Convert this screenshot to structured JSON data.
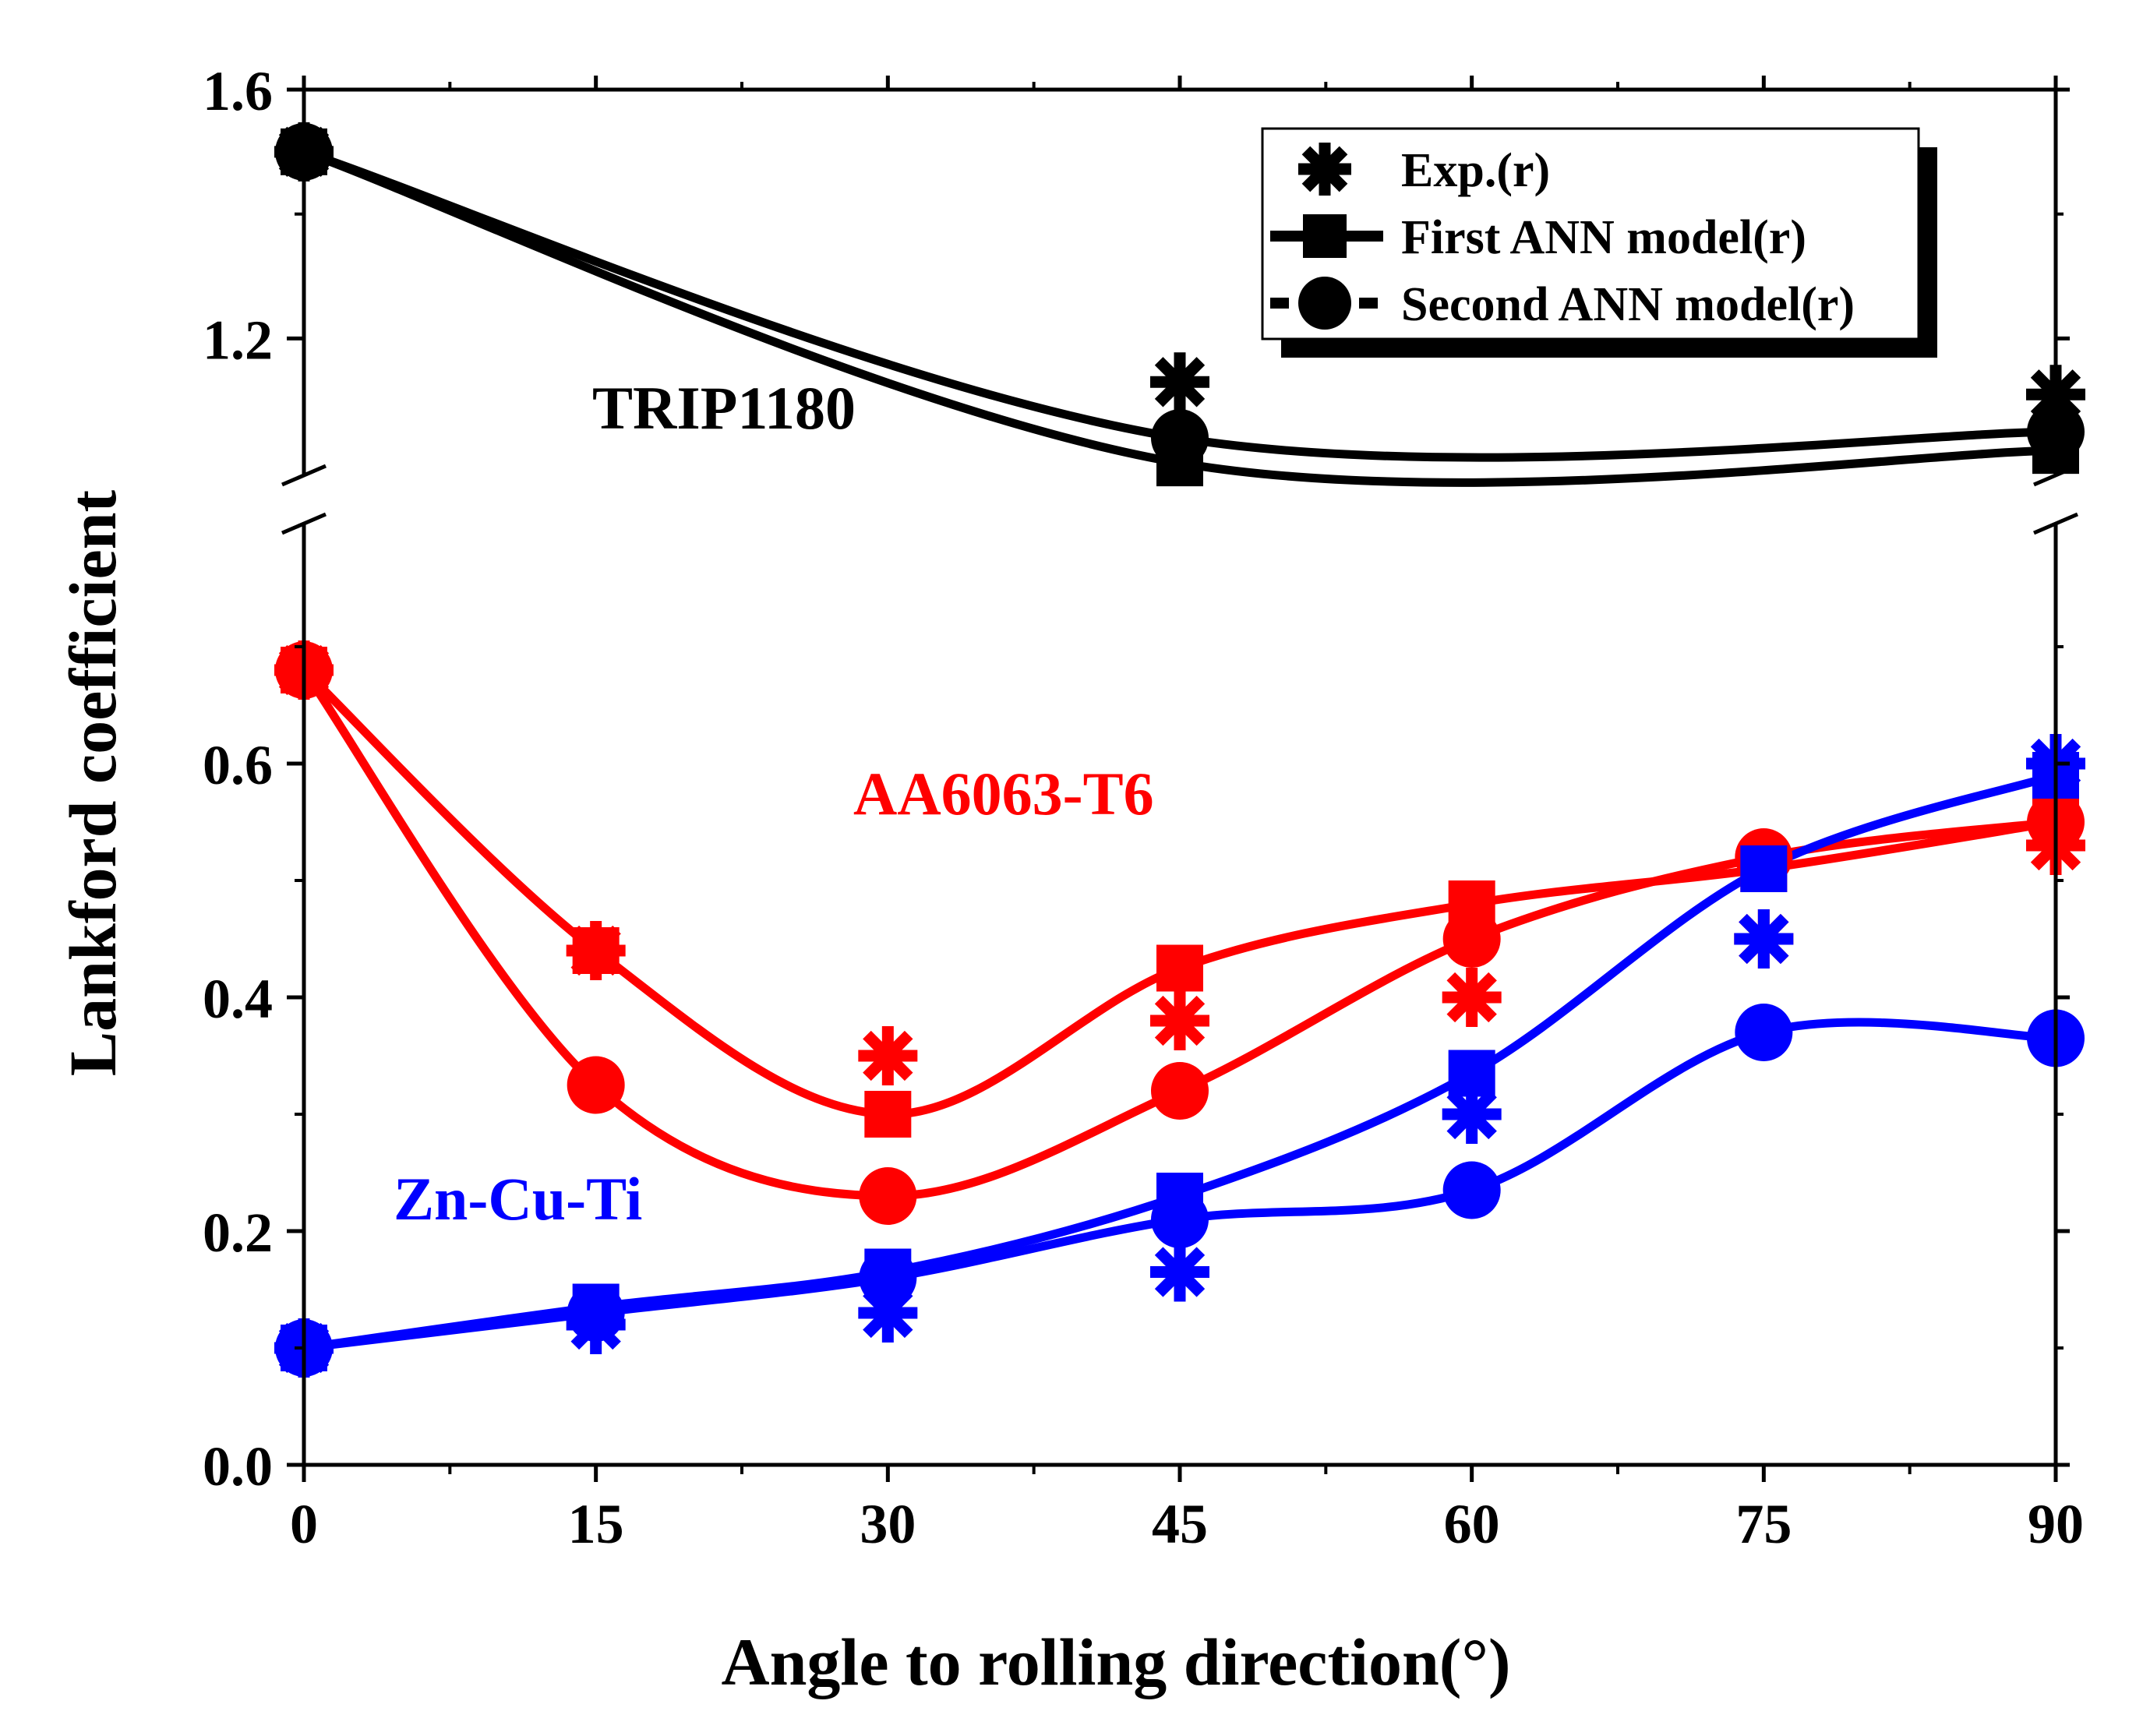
{
  "chart_data": {
    "type": "line",
    "xlabel": "Angle to rolling direction(°)",
    "ylabel": "Lankford coefficient",
    "x": [
      0,
      15,
      30,
      45,
      60,
      75,
      90
    ],
    "xlim": [
      0,
      90
    ],
    "xticks": [
      0,
      15,
      30,
      45,
      60,
      75,
      90
    ],
    "xtick_labels": [
      "0",
      "15",
      "30",
      "45",
      "60",
      "75",
      "90"
    ],
    "ylim_lower": [
      0.0,
      0.82
    ],
    "ylim_upper": [
      0.93,
      1.6
    ],
    "yticks": [
      0.0,
      0.2,
      0.4,
      0.6,
      1.2,
      1.6
    ],
    "ytick_labels": [
      "0.0",
      "0.2",
      "0.4",
      "0.6",
      "1.2",
      "1.6"
    ],
    "axis_break": true,
    "grid": false,
    "legend": {
      "position": "top-right",
      "entries": [
        "Exp.(r)",
        "First ANN model(r)",
        "Second ANN model(r)"
      ]
    },
    "materials": [
      {
        "name": "TRIP1180",
        "color": "#000000",
        "series": [
          {
            "name": "Exp.(r)",
            "values": [
              1.5,
              null,
              null,
              1.13,
              null,
              null,
              1.11
            ]
          },
          {
            "name": "First ANN model(r)",
            "values": [
              1.5,
              null,
              null,
              1.0,
              null,
              null,
              1.02
            ]
          },
          {
            "name": "Second ANN model(r)",
            "values": [
              1.5,
              null,
              null,
              1.04,
              null,
              null,
              1.05
            ]
          }
        ]
      },
      {
        "name": "AA6063-T6",
        "color": "#ff0000",
        "series": [
          {
            "name": "Exp.(r)",
            "values": [
              0.68,
              0.44,
              0.35,
              0.38,
              0.4,
              0.45,
              0.53
            ]
          },
          {
            "name": "First ANN model(r)",
            "values": [
              0.68,
              0.44,
              0.3,
              0.425,
              0.48,
              0.51,
              0.55
            ]
          },
          {
            "name": "Second ANN model(r)",
            "values": [
              0.68,
              0.325,
              0.23,
              0.32,
              0.45,
              0.52,
              0.55
            ]
          }
        ]
      },
      {
        "name": "Zn-Cu-Ti",
        "color": "#0000ff",
        "series": [
          {
            "name": "Exp.(r)",
            "values": [
              0.1,
              0.12,
              0.13,
              0.165,
              0.3,
              0.45,
              0.6
            ]
          },
          {
            "name": "First ANN model(r)",
            "values": [
              0.1,
              0.135,
              0.165,
              0.23,
              0.335,
              0.51,
              0.59
            ]
          },
          {
            "name": "Second ANN model(r)",
            "values": [
              0.1,
              0.13,
              0.16,
              0.21,
              0.235,
              0.37,
              0.365
            ]
          }
        ]
      }
    ]
  }
}
